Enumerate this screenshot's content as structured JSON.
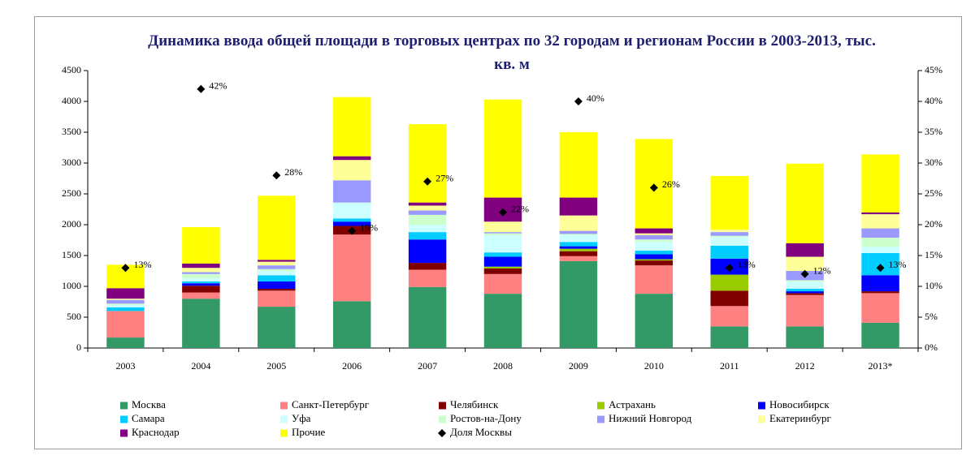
{
  "chart_data": {
    "type": "bar",
    "stacked": true,
    "title": "Динамика ввода общей площади в торговых центрах по 32 городам и регионам России в 2003-2013, тыс. кв. м",
    "categories": [
      "2003",
      "2004",
      "2005",
      "2006",
      "2007",
      "2008",
      "2009",
      "2010",
      "2011",
      "2012",
      "2013*"
    ],
    "ylim": [
      0,
      4500
    ],
    "yticks": [
      0,
      500,
      1000,
      1500,
      2000,
      2500,
      3000,
      3500,
      4000,
      4500
    ],
    "y2lim": [
      0,
      45
    ],
    "y2ticks": [
      {
        "value": 0,
        "label": "0%"
      },
      {
        "value": 5,
        "label": "5%"
      },
      {
        "value": 10,
        "label": "10%"
      },
      {
        "value": 15,
        "label": "15%"
      },
      {
        "value": 20,
        "label": "20%"
      },
      {
        "value": 25,
        "label": "25%"
      },
      {
        "value": 30,
        "label": "30%"
      },
      {
        "value": 35,
        "label": "35%"
      },
      {
        "value": 40,
        "label": "40%"
      },
      {
        "value": 45,
        "label": "45%"
      }
    ],
    "series": [
      {
        "name": "Москва",
        "color": "#339966",
        "values": [
          170,
          800,
          670,
          760,
          990,
          880,
          1410,
          880,
          350,
          350,
          410
        ]
      },
      {
        "name": "Санкт-Петербург",
        "color": "#ff8080",
        "values": [
          430,
          100,
          260,
          1080,
          280,
          320,
          80,
          460,
          330,
          510,
          480
        ]
      },
      {
        "name": "Челябинск",
        "color": "#800000",
        "values": [
          0,
          110,
          30,
          140,
          110,
          90,
          80,
          80,
          250,
          30,
          30
        ]
      },
      {
        "name": "Астрахань",
        "color": "#99cc00",
        "values": [
          0,
          0,
          0,
          0,
          0,
          30,
          40,
          20,
          260,
          0,
          0
        ]
      },
      {
        "name": "Новосибирск",
        "color": "#0000ff",
        "values": [
          0,
          40,
          120,
          70,
          380,
          160,
          40,
          80,
          260,
          30,
          260
        ]
      },
      {
        "name": "Самара",
        "color": "#00ccff",
        "values": [
          60,
          30,
          100,
          50,
          120,
          70,
          70,
          60,
          210,
          40,
          360
        ]
      },
      {
        "name": "Уфа",
        "color": "#ccffff",
        "values": [
          40,
          50,
          70,
          250,
          120,
          280,
          110,
          140,
          140,
          120,
          100
        ]
      },
      {
        "name": "Ростов-на-Дону",
        "color": "#ccffcc",
        "values": [
          20,
          70,
          30,
          10,
          160,
          30,
          20,
          40,
          20,
          20,
          150
        ]
      },
      {
        "name": "Нижний Новгород",
        "color": "#9999ff",
        "values": [
          60,
          30,
          60,
          360,
          70,
          20,
          50,
          70,
          60,
          150,
          150
        ]
      },
      {
        "name": "Екатеринбург",
        "color": "#ffff99",
        "values": [
          20,
          70,
          60,
          330,
          80,
          170,
          250,
          30,
          40,
          230,
          230
        ]
      },
      {
        "name": "Краснодар",
        "color": "#800080",
        "values": [
          170,
          70,
          30,
          60,
          50,
          390,
          290,
          80,
          0,
          220,
          30
        ]
      },
      {
        "name": "Прочие",
        "color": "#ffff00",
        "values": [
          380,
          590,
          1040,
          960,
          1270,
          1590,
          1060,
          1450,
          870,
          1290,
          940
        ]
      },
      {
        "name": "Доля Москвы",
        "type": "scatter",
        "axis": "y2",
        "color": "#000000",
        "values": [
          13,
          42,
          28,
          19,
          27,
          22,
          40,
          26,
          13,
          12,
          13
        ],
        "value_labels": [
          "13%",
          "42%",
          "28%",
          "19%",
          "27%",
          "22%",
          "40%",
          "26%",
          "13%",
          "12%",
          "13%"
        ]
      }
    ]
  }
}
